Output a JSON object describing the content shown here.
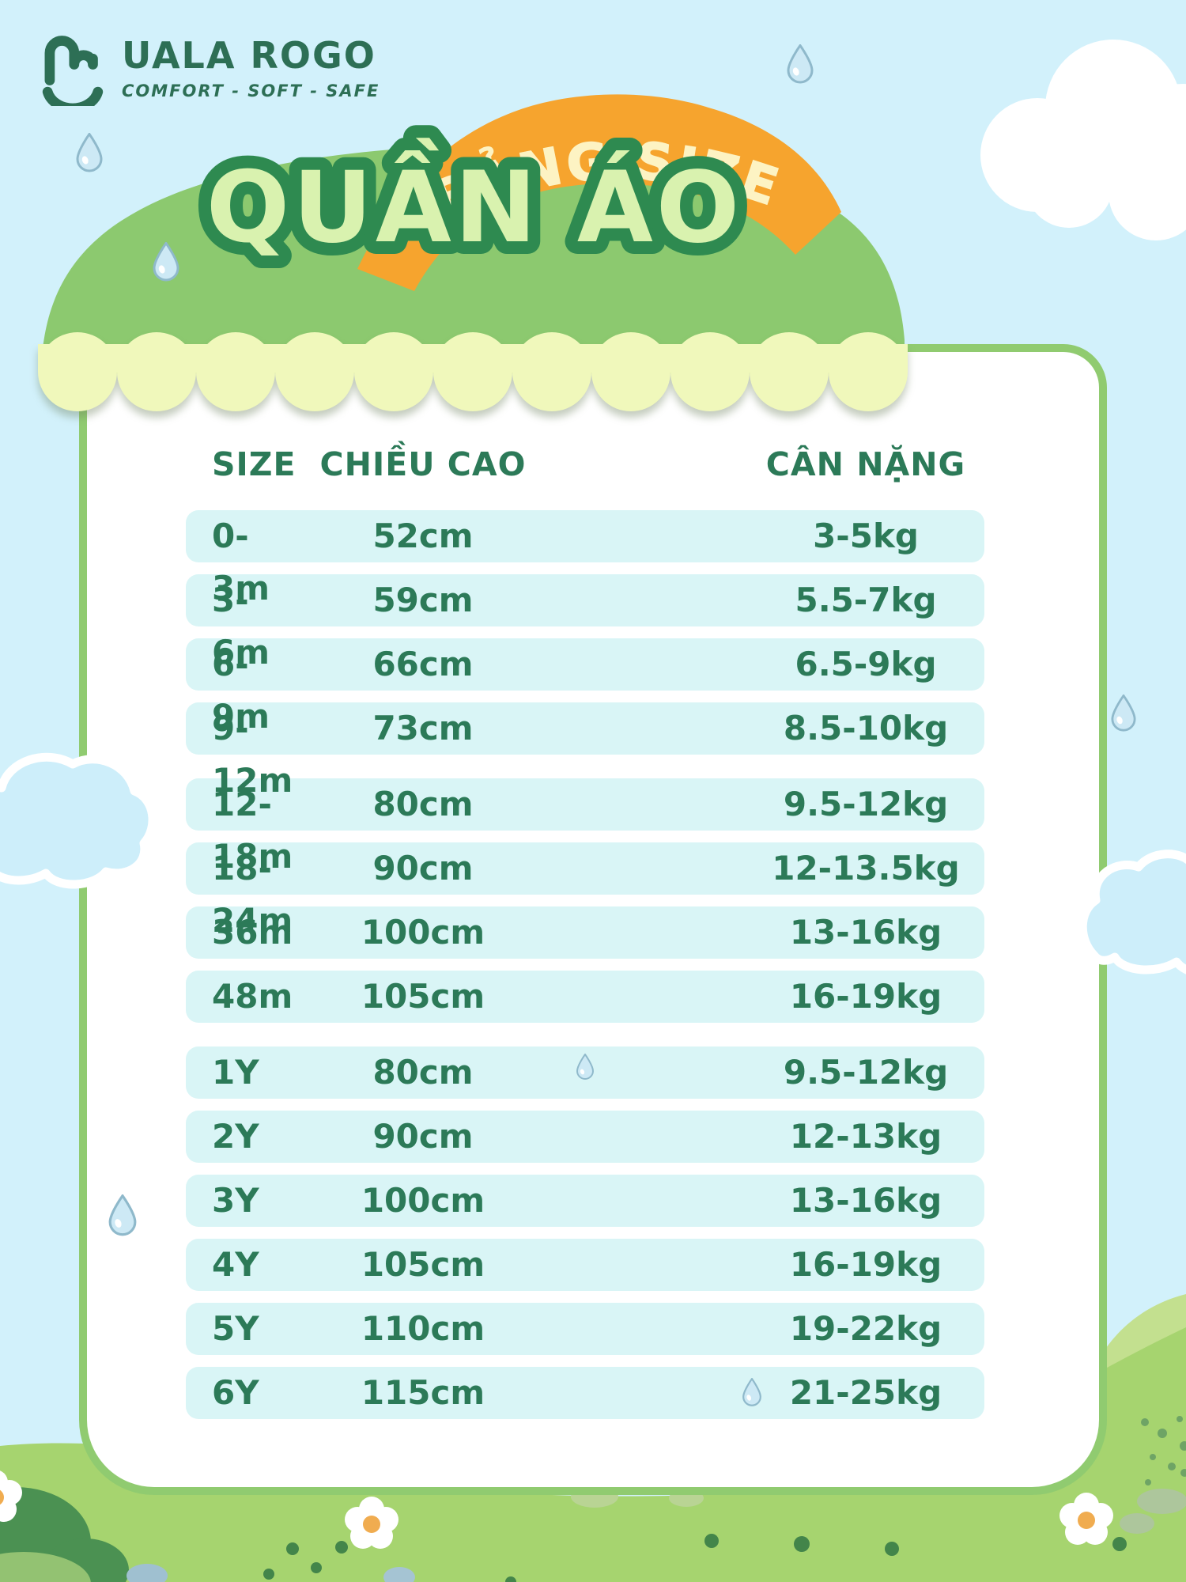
{
  "brand": {
    "name": "UALA ROGO",
    "tagline": "COMFORT - SOFT - SAFE"
  },
  "banner": {
    "label": "BẢNG SIZE"
  },
  "title": "QUẦN ÁO",
  "table": {
    "headers": [
      "SIZE",
      "CHIỀU CAO",
      "CÂN NẶNG"
    ],
    "groups": [
      {
        "rows": [
          [
            "0-3m",
            "52cm",
            "3-5kg"
          ],
          [
            "3-6m",
            "59cm",
            "5.5-7kg"
          ],
          [
            "6-9m",
            "66cm",
            "6.5-9kg"
          ],
          [
            "9-12m",
            "73cm",
            "8.5-10kg"
          ]
        ]
      },
      {
        "rows": [
          [
            "12-18m",
            "80cm",
            "9.5-12kg"
          ],
          [
            "18-24m",
            "90cm",
            "12-13.5kg"
          ],
          [
            "36m",
            "100cm",
            "13-16kg"
          ],
          [
            "48m",
            "105cm",
            "16-19kg"
          ]
        ]
      },
      {
        "rows": [
          [
            "1Y",
            "80cm",
            "9.5-12kg"
          ],
          [
            "2Y",
            "90cm",
            "12-13kg"
          ],
          [
            "3Y",
            "100cm",
            "13-16kg"
          ],
          [
            "4Y",
            "105cm",
            "16-19kg"
          ],
          [
            "5Y",
            "110cm",
            "19-22kg"
          ],
          [
            "6Y",
            "115cm",
            "21-25kg"
          ]
        ]
      }
    ]
  },
  "icons": {
    "logo": "bunny-smile-icon",
    "decorations": [
      "water-drop-icon",
      "cloud-icon",
      "flower-icon",
      "bush-icon"
    ]
  },
  "colors": {
    "sky": "#d2f1fb",
    "roof_green": "#8cc96f",
    "awning_scallop": "#f0f8bb",
    "ribbon_orange": "#f6a42e",
    "ribbon_text": "#fdf3c3",
    "title_fill": "#d9f2af",
    "title_outline": "#2e8a50",
    "table_text": "#2c7a58",
    "row_background": "#d9f5f6",
    "card_border": "#90cb70",
    "grass": "#a6d46f",
    "logo_green": "#2d6f55"
  }
}
